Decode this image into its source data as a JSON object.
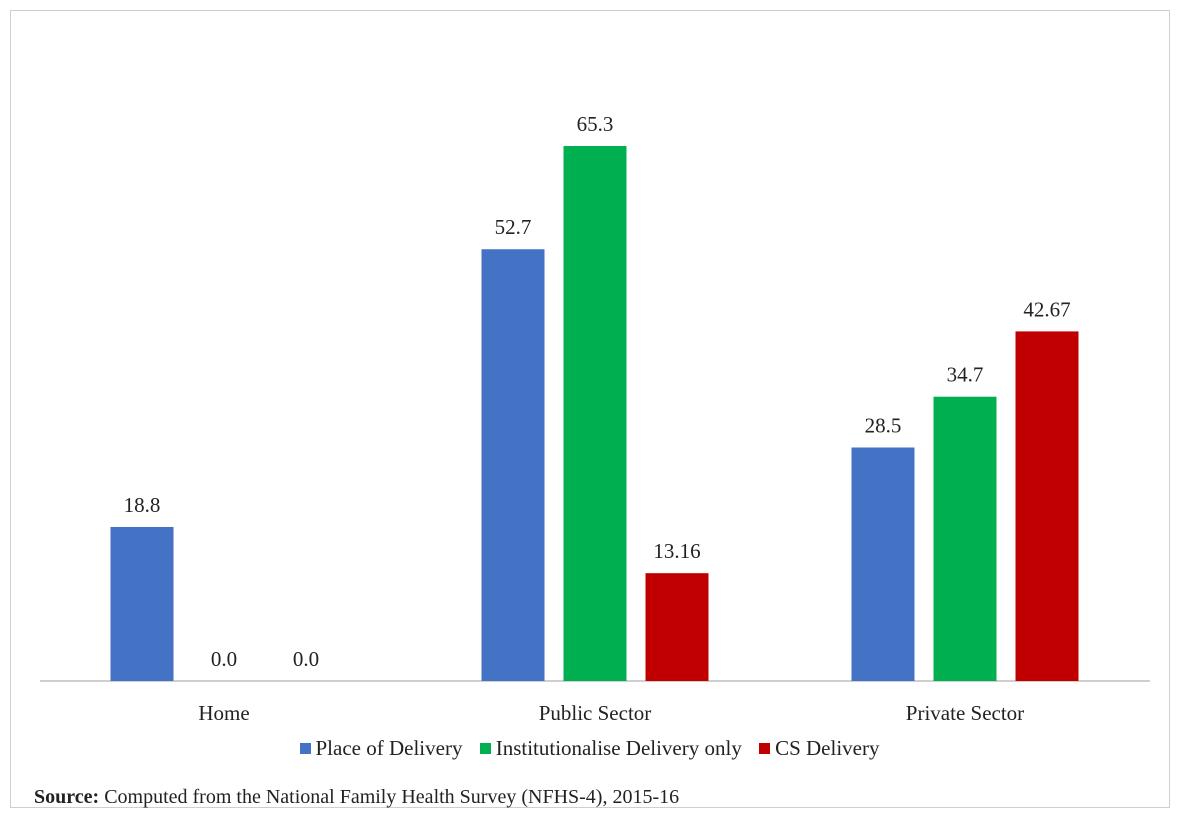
{
  "colors": {
    "place_of_delivery": "#4472c4",
    "institutional": "#00b050",
    "cs_delivery": "#c00000",
    "axis": "#bfbfbf"
  },
  "chart_data": {
    "type": "bar",
    "title": "",
    "xlabel": "",
    "ylabel": "",
    "categories": [
      "Home",
      "Public Sector",
      "Private Sector"
    ],
    "series": [
      {
        "name": "Place of Delivery",
        "values": [
          18.8,
          52.7,
          28.5
        ],
        "labels": [
          "18.8",
          "52.7",
          "28.5"
        ]
      },
      {
        "name": "Institutionalise Delivery only",
        "values": [
          0.0,
          65.3,
          34.7
        ],
        "labels": [
          "0.0",
          "65.3",
          "34.7"
        ]
      },
      {
        "name": "CS Delivery",
        "values": [
          0.0,
          13.16,
          42.67
        ],
        "labels": [
          "0.0",
          "13.16",
          "42.67"
        ]
      }
    ],
    "ylim": [
      0,
      70
    ],
    "grid": false,
    "legend_position": "bottom"
  },
  "source": {
    "label": "Source:",
    "text": " Computed from the National Family Health Survey (NFHS-4), 2015-16"
  }
}
